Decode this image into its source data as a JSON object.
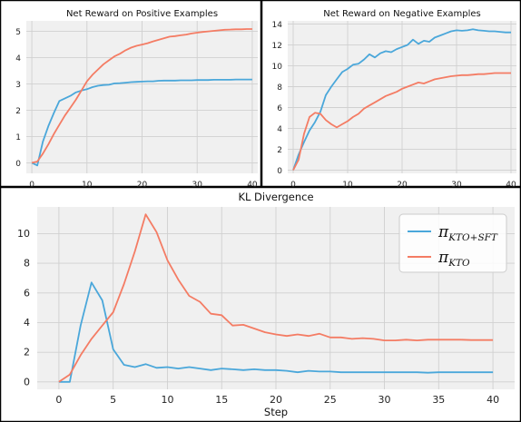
{
  "chart_data": [
    {
      "type": "line",
      "title": "Net Reward on Positive Examples",
      "xlim": [
        -1,
        41
      ],
      "ylim": [
        -0.4,
        5.4
      ],
      "xticks": [
        0,
        10,
        20,
        30,
        40
      ],
      "yticks": [
        0,
        1,
        2,
        3,
        4,
        5
      ],
      "grid": true,
      "series": [
        {
          "color": "#4aa7da",
          "points": [
            [
              0,
              0
            ],
            [
              1,
              -0.1
            ],
            [
              2,
              0.8
            ],
            [
              3,
              1.4
            ],
            [
              4,
              1.9
            ],
            [
              5,
              2.35
            ],
            [
              6,
              2.45
            ],
            [
              7,
              2.55
            ],
            [
              8,
              2.68
            ],
            [
              9,
              2.75
            ],
            [
              10,
              2.8
            ],
            [
              11,
              2.88
            ],
            [
              12,
              2.93
            ],
            [
              13,
              2.96
            ],
            [
              14,
              2.97
            ],
            [
              15,
              3.02
            ],
            [
              16,
              3.03
            ],
            [
              17,
              3.05
            ],
            [
              18,
              3.07
            ],
            [
              19,
              3.08
            ],
            [
              20,
              3.09
            ],
            [
              21,
              3.1
            ],
            [
              22,
              3.1
            ],
            [
              23,
              3.12
            ],
            [
              24,
              3.13
            ],
            [
              25,
              3.13
            ],
            [
              26,
              3.13
            ],
            [
              27,
              3.14
            ],
            [
              28,
              3.14
            ],
            [
              29,
              3.14
            ],
            [
              30,
              3.15
            ],
            [
              31,
              3.15
            ],
            [
              32,
              3.15
            ],
            [
              33,
              3.16
            ],
            [
              34,
              3.16
            ],
            [
              35,
              3.16
            ],
            [
              36,
              3.16
            ],
            [
              37,
              3.17
            ],
            [
              38,
              3.17
            ],
            [
              39,
              3.17
            ],
            [
              40,
              3.17
            ]
          ]
        },
        {
          "color": "#f47c64",
          "points": [
            [
              0,
              0
            ],
            [
              1,
              0.05
            ],
            [
              2,
              0.35
            ],
            [
              3,
              0.7
            ],
            [
              4,
              1.1
            ],
            [
              5,
              1.45
            ],
            [
              6,
              1.8
            ],
            [
              7,
              2.1
            ],
            [
              8,
              2.4
            ],
            [
              9,
              2.75
            ],
            [
              10,
              3.1
            ],
            [
              11,
              3.35
            ],
            [
              12,
              3.55
            ],
            [
              13,
              3.75
            ],
            [
              14,
              3.9
            ],
            [
              15,
              4.05
            ],
            [
              16,
              4.15
            ],
            [
              17,
              4.28
            ],
            [
              18,
              4.38
            ],
            [
              19,
              4.45
            ],
            [
              20,
              4.5
            ],
            [
              21,
              4.55
            ],
            [
              22,
              4.62
            ],
            [
              23,
              4.68
            ],
            [
              24,
              4.74
            ],
            [
              25,
              4.8
            ],
            [
              26,
              4.82
            ],
            [
              27,
              4.85
            ],
            [
              28,
              4.88
            ],
            [
              29,
              4.92
            ],
            [
              30,
              4.95
            ],
            [
              31,
              4.98
            ],
            [
              32,
              5.0
            ],
            [
              33,
              5.02
            ],
            [
              34,
              5.04
            ],
            [
              35,
              5.06
            ],
            [
              36,
              5.07
            ],
            [
              37,
              5.08
            ],
            [
              38,
              5.08
            ],
            [
              39,
              5.09
            ],
            [
              40,
              5.09
            ]
          ]
        }
      ]
    },
    {
      "type": "line",
      "title": "Net Reward on Negative Examples",
      "xlim": [
        -1,
        41
      ],
      "ylim": [
        -0.3,
        14.3
      ],
      "xticks": [
        0,
        10,
        20,
        30,
        40
      ],
      "yticks": [
        0,
        2,
        4,
        6,
        8,
        10,
        12,
        14
      ],
      "grid": true,
      "series": [
        {
          "color": "#4aa7da",
          "points": [
            [
              0,
              0
            ],
            [
              1,
              1.5
            ],
            [
              2,
              2.7
            ],
            [
              3,
              3.8
            ],
            [
              4,
              4.6
            ],
            [
              5,
              5.6
            ],
            [
              6,
              7.2
            ],
            [
              7,
              8.0
            ],
            [
              8,
              8.7
            ],
            [
              9,
              9.4
            ],
            [
              10,
              9.7
            ],
            [
              11,
              10.1
            ],
            [
              12,
              10.2
            ],
            [
              13,
              10.6
            ],
            [
              14,
              11.1
            ],
            [
              15,
              10.8
            ],
            [
              16,
              11.2
            ],
            [
              17,
              11.4
            ],
            [
              18,
              11.3
            ],
            [
              19,
              11.6
            ],
            [
              20,
              11.8
            ],
            [
              21,
              12.0
            ],
            [
              22,
              12.5
            ],
            [
              23,
              12.1
            ],
            [
              24,
              12.4
            ],
            [
              25,
              12.3
            ],
            [
              26,
              12.7
            ],
            [
              27,
              12.9
            ],
            [
              28,
              13.1
            ],
            [
              29,
              13.3
            ],
            [
              30,
              13.4
            ],
            [
              31,
              13.35
            ],
            [
              32,
              13.4
            ],
            [
              33,
              13.5
            ],
            [
              34,
              13.4
            ],
            [
              35,
              13.35
            ],
            [
              36,
              13.3
            ],
            [
              37,
              13.3
            ],
            [
              38,
              13.25
            ],
            [
              39,
              13.2
            ],
            [
              40,
              13.2
            ]
          ]
        },
        {
          "color": "#f47c64",
          "points": [
            [
              0,
              0
            ],
            [
              1,
              1.0
            ],
            [
              2,
              3.5
            ],
            [
              3,
              5.1
            ],
            [
              4,
              5.5
            ],
            [
              5,
              5.4
            ],
            [
              6,
              4.8
            ],
            [
              7,
              4.4
            ],
            [
              8,
              4.1
            ],
            [
              9,
              4.4
            ],
            [
              10,
              4.7
            ],
            [
              11,
              5.1
            ],
            [
              12,
              5.4
            ],
            [
              13,
              5.9
            ],
            [
              14,
              6.2
            ],
            [
              15,
              6.5
            ],
            [
              16,
              6.8
            ],
            [
              17,
              7.1
            ],
            [
              18,
              7.3
            ],
            [
              19,
              7.5
            ],
            [
              20,
              7.8
            ],
            [
              21,
              8.0
            ],
            [
              22,
              8.2
            ],
            [
              23,
              8.4
            ],
            [
              24,
              8.3
            ],
            [
              25,
              8.5
            ],
            [
              26,
              8.7
            ],
            [
              27,
              8.8
            ],
            [
              28,
              8.9
            ],
            [
              29,
              9.0
            ],
            [
              30,
              9.05
            ],
            [
              31,
              9.1
            ],
            [
              32,
              9.1
            ],
            [
              33,
              9.15
            ],
            [
              34,
              9.2
            ],
            [
              35,
              9.2
            ],
            [
              36,
              9.25
            ],
            [
              37,
              9.3
            ],
            [
              38,
              9.3
            ],
            [
              39,
              9.3
            ],
            [
              40,
              9.3
            ]
          ]
        }
      ]
    },
    {
      "type": "line",
      "title": "KL Divergence",
      "xlabel": "Step",
      "xlim": [
        -2,
        42
      ],
      "ylim": [
        -0.5,
        11.8
      ],
      "xticks": [
        0,
        5,
        10,
        15,
        20,
        25,
        30,
        35,
        40
      ],
      "yticks": [
        0,
        2,
        4,
        6,
        8,
        10
      ],
      "grid": true,
      "legend": "top-right",
      "series": [
        {
          "name_main": "π",
          "name_sub": "KTO+SFT",
          "color": "#4aa7da",
          "points": [
            [
              0,
              0
            ],
            [
              1,
              0
            ],
            [
              2,
              3.8
            ],
            [
              3,
              6.7
            ],
            [
              4,
              5.5
            ],
            [
              5,
              2.2
            ],
            [
              6,
              1.15
            ],
            [
              7,
              1.0
            ],
            [
              8,
              1.2
            ],
            [
              9,
              0.95
            ],
            [
              10,
              1.0
            ],
            [
              11,
              0.9
            ],
            [
              12,
              1.0
            ],
            [
              13,
              0.9
            ],
            [
              14,
              0.8
            ],
            [
              15,
              0.9
            ],
            [
              16,
              0.85
            ],
            [
              17,
              0.8
            ],
            [
              18,
              0.85
            ],
            [
              19,
              0.8
            ],
            [
              20,
              0.8
            ],
            [
              21,
              0.75
            ],
            [
              22,
              0.65
            ],
            [
              23,
              0.75
            ],
            [
              24,
              0.7
            ],
            [
              25,
              0.7
            ],
            [
              26,
              0.65
            ],
            [
              27,
              0.65
            ],
            [
              28,
              0.65
            ],
            [
              29,
              0.65
            ],
            [
              30,
              0.65
            ],
            [
              31,
              0.65
            ],
            [
              32,
              0.65
            ],
            [
              33,
              0.65
            ],
            [
              34,
              0.62
            ],
            [
              35,
              0.65
            ],
            [
              36,
              0.65
            ],
            [
              37,
              0.65
            ],
            [
              38,
              0.65
            ],
            [
              39,
              0.65
            ],
            [
              40,
              0.65
            ]
          ]
        },
        {
          "name_main": "π",
          "name_sub": "KTO",
          "color": "#f47c64",
          "points": [
            [
              0,
              0
            ],
            [
              1,
              0.5
            ],
            [
              2,
              1.8
            ],
            [
              3,
              2.9
            ],
            [
              4,
              3.8
            ],
            [
              5,
              4.7
            ],
            [
              6,
              6.6
            ],
            [
              7,
              8.8
            ],
            [
              8,
              11.3
            ],
            [
              9,
              10.1
            ],
            [
              10,
              8.2
            ],
            [
              11,
              6.9
            ],
            [
              12,
              5.8
            ],
            [
              13,
              5.4
            ],
            [
              14,
              4.6
            ],
            [
              15,
              4.5
            ],
            [
              16,
              3.8
            ],
            [
              17,
              3.85
            ],
            [
              18,
              3.6
            ],
            [
              19,
              3.35
            ],
            [
              20,
              3.2
            ],
            [
              21,
              3.1
            ],
            [
              22,
              3.2
            ],
            [
              23,
              3.1
            ],
            [
              24,
              3.25
            ],
            [
              25,
              3.0
            ],
            [
              26,
              3.0
            ],
            [
              27,
              2.9
            ],
            [
              28,
              2.95
            ],
            [
              29,
              2.9
            ],
            [
              30,
              2.8
            ],
            [
              31,
              2.8
            ],
            [
              32,
              2.85
            ],
            [
              33,
              2.8
            ],
            [
              34,
              2.85
            ],
            [
              35,
              2.85
            ],
            [
              36,
              2.85
            ],
            [
              37,
              2.85
            ],
            [
              38,
              2.82
            ],
            [
              39,
              2.82
            ],
            [
              40,
              2.82
            ]
          ]
        }
      ]
    }
  ]
}
